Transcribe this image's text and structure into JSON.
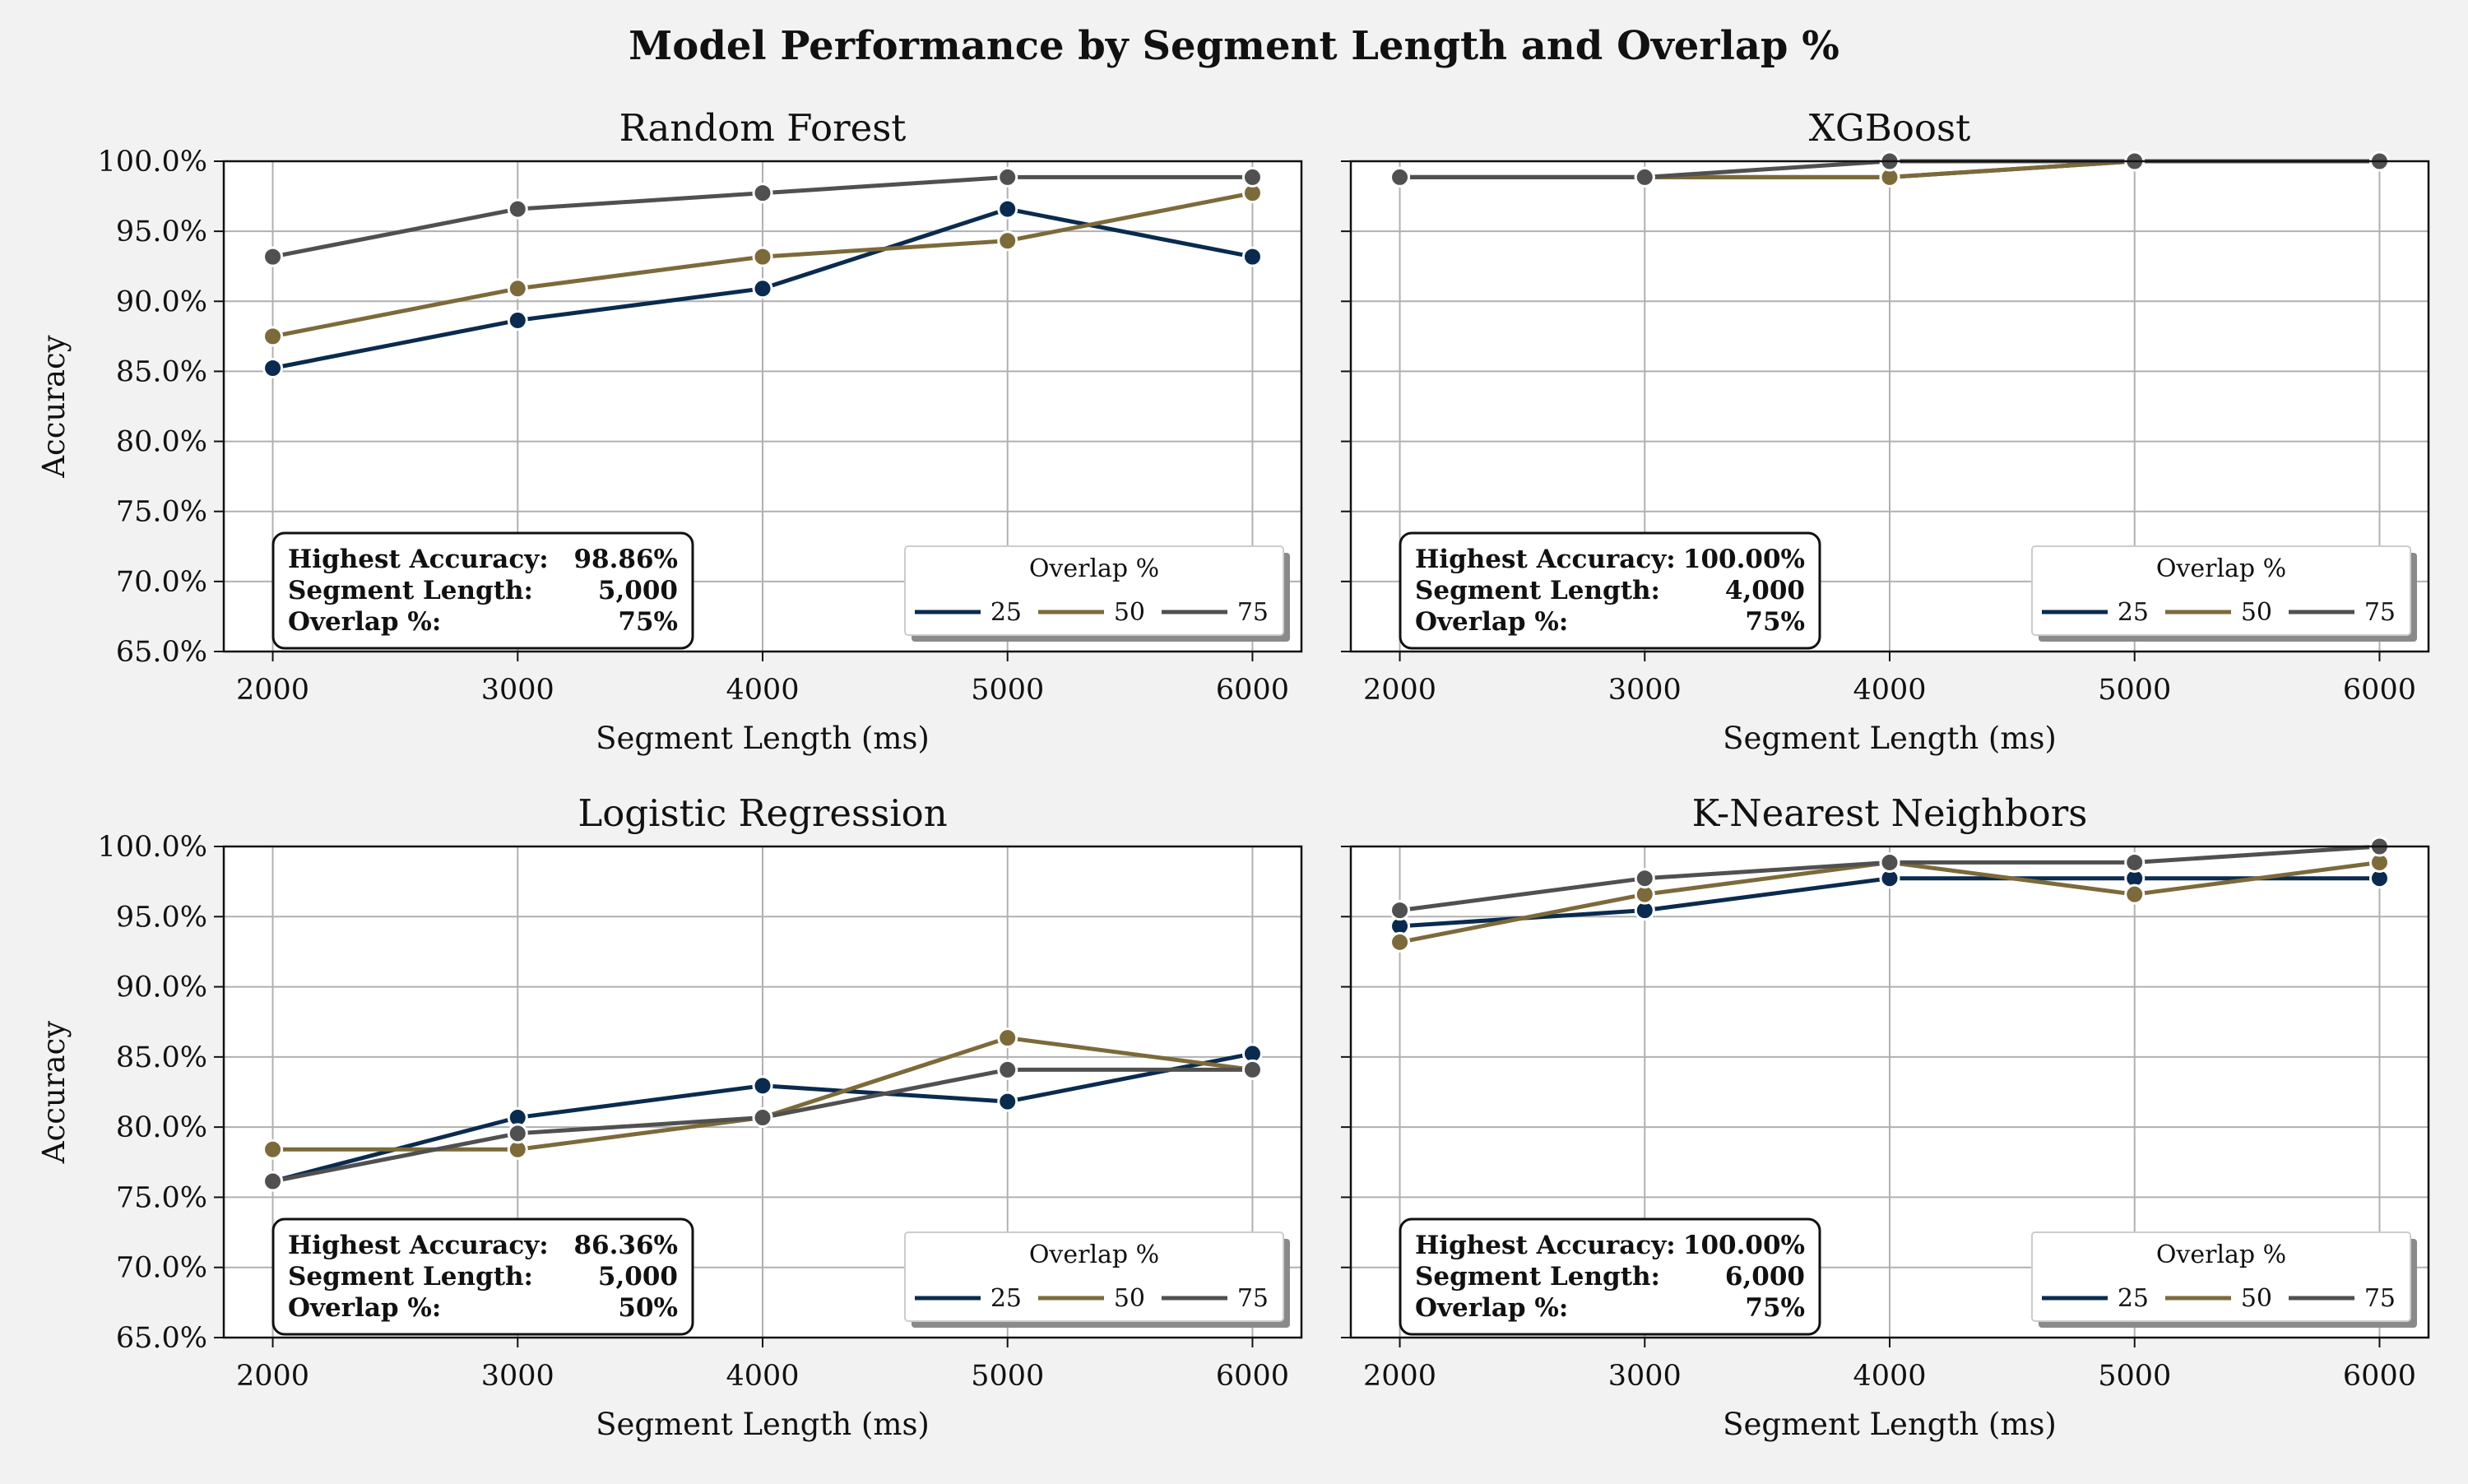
{
  "suptitle": "Model Performance by Segment Length and Overlap %",
  "chart_data": [
    {
      "type": "line",
      "title": "Random Forest",
      "xlabel": "Segment Length (ms)",
      "ylabel": "Accuracy",
      "x": [
        2000,
        3000,
        4000,
        5000,
        6000
      ],
      "xlim": [
        1800,
        6200
      ],
      "ylim": [
        0.65,
        1.0
      ],
      "yticks": [
        "65.0%",
        "70.0%",
        "75.0%",
        "80.0%",
        "85.0%",
        "90.0%",
        "95.0%",
        "100.0%"
      ],
      "grid": true,
      "legend": {
        "title": "Overlap %",
        "placement": "lower right"
      },
      "series": [
        {
          "name": "25",
          "values": [
            0.8523,
            0.8864,
            0.9091,
            0.9659,
            0.9318
          ]
        },
        {
          "name": "50",
          "values": [
            0.875,
            0.9091,
            0.9318,
            0.9432,
            0.9773
          ]
        },
        {
          "name": "75",
          "values": [
            0.9318,
            0.9659,
            0.9773,
            0.9886,
            0.9886
          ]
        }
      ],
      "annotation": {
        "rows": [
          {
            "label": "Highest Accuracy:",
            "value": "98.86%"
          },
          {
            "label": "Segment Length:",
            "value": "5,000"
          },
          {
            "label": "Overlap %:",
            "value": "75%"
          }
        ]
      }
    },
    {
      "type": "line",
      "title": "XGBoost",
      "xlabel": "Segment Length (ms)",
      "ylabel": "",
      "x": [
        2000,
        3000,
        4000,
        5000,
        6000
      ],
      "xlim": [
        1800,
        6200
      ],
      "ylim": [
        0.65,
        1.0
      ],
      "yticks": [],
      "grid": true,
      "legend": {
        "title": "Overlap %",
        "placement": "lower right"
      },
      "series": [
        {
          "name": "25",
          "values": [
            0.9886,
            0.9886,
            0.9886,
            1.0,
            1.0
          ]
        },
        {
          "name": "50",
          "values": [
            0.9886,
            0.9886,
            0.9886,
            1.0,
            1.0
          ]
        },
        {
          "name": "75",
          "values": [
            0.9886,
            0.9886,
            1.0,
            1.0,
            1.0
          ]
        }
      ],
      "annotation": {
        "rows": [
          {
            "label": "Highest Accuracy:",
            "value": "100.00%"
          },
          {
            "label": "Segment Length:",
            "value": "4,000"
          },
          {
            "label": "Overlap %:",
            "value": "75%"
          }
        ]
      }
    },
    {
      "type": "line",
      "title": "Logistic Regression",
      "xlabel": "Segment Length (ms)",
      "ylabel": "Accuracy",
      "x": [
        2000,
        3000,
        4000,
        5000,
        6000
      ],
      "xlim": [
        1800,
        6200
      ],
      "ylim": [
        0.65,
        1.0
      ],
      "yticks": [
        "65.0%",
        "70.0%",
        "75.0%",
        "80.0%",
        "85.0%",
        "90.0%",
        "95.0%",
        "100.0%"
      ],
      "grid": true,
      "legend": {
        "title": "Overlap %",
        "placement": "lower right"
      },
      "series": [
        {
          "name": "25",
          "values": [
            0.7614,
            0.8068,
            0.8295,
            0.8182,
            0.8523
          ]
        },
        {
          "name": "50",
          "values": [
            0.7841,
            0.7841,
            0.8068,
            0.8636,
            0.8409
          ]
        },
        {
          "name": "75",
          "values": [
            0.7614,
            0.7955,
            0.8068,
            0.8409,
            0.8409
          ]
        }
      ],
      "annotation": {
        "rows": [
          {
            "label": "Highest Accuracy:",
            "value": "86.36%"
          },
          {
            "label": "Segment Length:",
            "value": "5,000"
          },
          {
            "label": "Overlap %:",
            "value": "50%"
          }
        ]
      }
    },
    {
      "type": "line",
      "title": "K-Nearest Neighbors",
      "xlabel": "Segment Length (ms)",
      "ylabel": "",
      "x": [
        2000,
        3000,
        4000,
        5000,
        6000
      ],
      "xlim": [
        1800,
        6200
      ],
      "ylim": [
        0.65,
        1.0
      ],
      "yticks": [],
      "grid": true,
      "legend": {
        "title": "Overlap %",
        "placement": "lower right"
      },
      "series": [
        {
          "name": "25",
          "values": [
            0.9432,
            0.9545,
            0.9773,
            0.9773,
            0.9773
          ]
        },
        {
          "name": "50",
          "values": [
            0.9318,
            0.9659,
            0.9886,
            0.9659,
            0.9886
          ]
        },
        {
          "name": "75",
          "values": [
            0.9545,
            0.9773,
            0.9886,
            0.9886,
            1.0
          ]
        }
      ],
      "annotation": {
        "rows": [
          {
            "label": "Highest Accuracy:",
            "value": "100.00%"
          },
          {
            "label": "Segment Length:",
            "value": "6,000"
          },
          {
            "label": "Overlap %:",
            "value": "75%"
          }
        ]
      }
    }
  ],
  "colors": {
    "series": [
      "#0a2b4f",
      "#7d6a3a",
      "#505050"
    ],
    "background": "#f2f2f2",
    "grid": "#b0b0b0"
  }
}
